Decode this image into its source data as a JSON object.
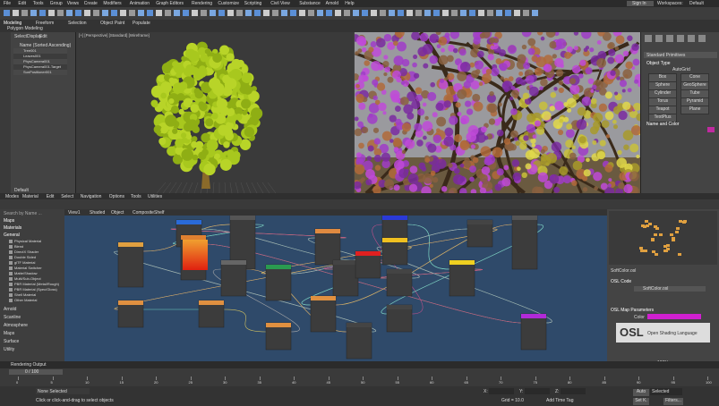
{
  "menu": [
    "File",
    "Edit",
    "Tools",
    "Group",
    "Views",
    "Create",
    "Modifiers",
    "Animation",
    "Graph Editors",
    "Rendering",
    "Customize",
    "Scripting",
    "Civil View",
    "Substance",
    "Arnold",
    "Help"
  ],
  "account": {
    "sign_in": "Sign In",
    "workspaces": "Workspaces:",
    "workspace": "Default"
  },
  "ribbon": {
    "tabs": [
      "Modeling",
      "Freeform",
      "Selection",
      "Object Paint",
      "Populate"
    ],
    "panel": "Polygon Modeling"
  },
  "scene_explorer": {
    "tabs": [
      "Select",
      "Display",
      "Edit"
    ],
    "header": "Name (Sorted Ascending)",
    "items": [
      "Tree001",
      "Leaves001",
      "PhysCamera001",
      "PhysCamera001.Target",
      "SunPositioner001"
    ],
    "footer": "Default"
  },
  "viewport_label": "[+] [Perspective] [Standard] [Wireframe]",
  "command_panel": {
    "dropdown": "Standard Primitives",
    "object_type": "Object Type",
    "autogrid": "AutoGrid",
    "buttons": [
      "Box",
      "Cone",
      "Sphere",
      "GeoSphere",
      "Cylinder",
      "Tube",
      "Torus",
      "Pyramid",
      "Teapot",
      "Plane",
      "TextPlus"
    ],
    "name_and_color": "Name and Color"
  },
  "material_editor": {
    "menu": [
      "Modes",
      "Material",
      "Edit",
      "Select",
      "Navigation",
      "Options",
      "Tools",
      "Utilities"
    ],
    "tabs": [
      "View1",
      "Shaded",
      "Object",
      "Composite",
      "Shelf"
    ],
    "browser": {
      "search": "Search by Name ...",
      "sections": [
        "Maps",
        "Materials",
        "General"
      ],
      "materials": [
        "Physical Material",
        "Blend",
        "DirectX Shader",
        "Double Sided",
        "glTF Material",
        "Material Switcher",
        "Matte/Shadow",
        "Multi/Sub-Object",
        "PBR Material (Metal/Rough)",
        "PBR Material (Spec/Gloss)",
        "Shell Material",
        "Other Material"
      ],
      "groups": [
        "Arnold",
        "Scanline",
        "Atmosphere",
        "Maps",
        "Surface",
        "Utility"
      ]
    },
    "osl": {
      "map_name": "SoftColor.osl",
      "code": "OSL Code",
      "file": "SoftColor.osl",
      "params": "OSL Map Parameters",
      "color": "Color",
      "logo": "OSL",
      "logo_sub": "Open Shading Language",
      "zoom": "100%"
    },
    "footer": "Rendering Output"
  },
  "timeline": {
    "frame": "0 / 100",
    "ticks": [
      0,
      5,
      10,
      15,
      20,
      25,
      30,
      35,
      40,
      45,
      50,
      55,
      60,
      65,
      70,
      75,
      80,
      85,
      90,
      95,
      100
    ]
  },
  "status": {
    "selection": "None Selected",
    "prompt": "Click or click-and-drag to select objects",
    "x": "X:",
    "y": "Y:",
    "z": "Z:",
    "grid": "Grid = 10.0",
    "time_tag": "Add Time Tag",
    "auto": "Auto",
    "selected": "Selected",
    "set_key": "Set K.",
    "filters": "Filters..."
  }
}
